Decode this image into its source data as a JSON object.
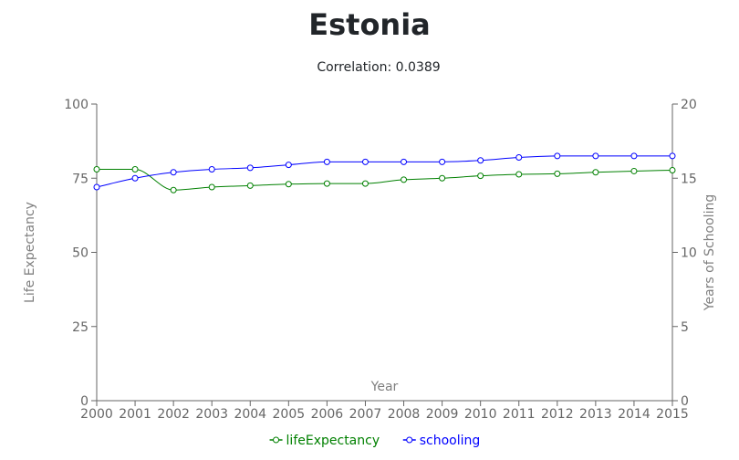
{
  "title": "Estonia",
  "subtitle": "Correlation: 0.0389",
  "chart_data": {
    "type": "line",
    "title": "Estonia",
    "subtitle": "Correlation: 0.0389",
    "xlabel": "Year",
    "ylabel_left": "Life Expectancy",
    "ylabel_right": "Years of Schooling",
    "x": [
      2000,
      2001,
      2002,
      2003,
      2004,
      2005,
      2006,
      2007,
      2008,
      2009,
      2010,
      2011,
      2012,
      2013,
      2014,
      2015
    ],
    "ylim_left": [
      0,
      100
    ],
    "ylim_right": [
      0,
      20
    ],
    "yticks_left": [
      0,
      25,
      50,
      75,
      100
    ],
    "yticks_right": [
      0,
      5,
      10,
      15,
      20
    ],
    "series": [
      {
        "name": "lifeExpectancy",
        "axis": "left",
        "color": "#008000",
        "values": [
          78,
          78,
          71,
          72,
          72.5,
          73,
          73.2,
          73.2,
          74.5,
          75,
          75.8,
          76.3,
          76.5,
          77,
          77.4,
          77.7
        ]
      },
      {
        "name": "schooling",
        "axis": "right",
        "color": "#0000ff",
        "values": [
          14.4,
          15.0,
          15.4,
          15.6,
          15.7,
          15.9,
          16.1,
          16.1,
          16.1,
          16.1,
          16.2,
          16.4,
          16.5,
          16.5,
          16.5,
          16.5
        ]
      }
    ],
    "grid": false,
    "legend_position": "bottom"
  }
}
